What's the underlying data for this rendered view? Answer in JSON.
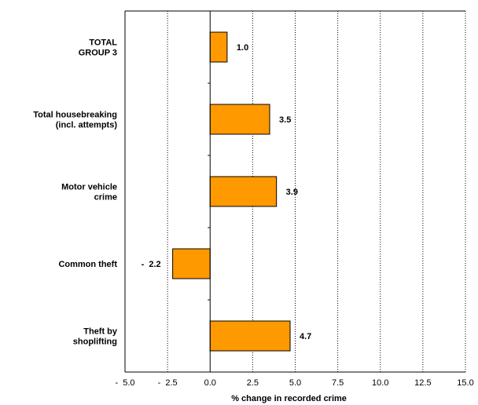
{
  "chart_data": {
    "type": "bar",
    "orientation": "horizontal",
    "categories": [
      [
        "TOTAL",
        "GROUP 3"
      ],
      [
        "Total housebreaking",
        "(incl. attempts)"
      ],
      [
        "Motor vehicle",
        "crime"
      ],
      [
        "Common theft"
      ],
      [
        "Theft by",
        "shoplifting"
      ]
    ],
    "values": [
      1.0,
      3.5,
      3.9,
      -2.2,
      4.7
    ],
    "data_labels": [
      "1.0",
      "3.5",
      "3.9",
      "-  2.2",
      "4.7"
    ],
    "xlim": [
      -5.0,
      15.0
    ],
    "xticks": [
      -5.0,
      -2.5,
      0.0,
      2.5,
      5.0,
      7.5,
      10.0,
      12.5,
      15.0
    ],
    "xtick_labels": [
      "-  5.0",
      "-  2.5",
      "0.0",
      "2.5",
      "5.0",
      "7.5",
      "10.0",
      "12.5",
      "15.0"
    ],
    "xlabel": "% change in recorded crime",
    "grid": "vertical dotted",
    "bar_color": "#FF9900",
    "bar_edge_color": "#000000"
  }
}
